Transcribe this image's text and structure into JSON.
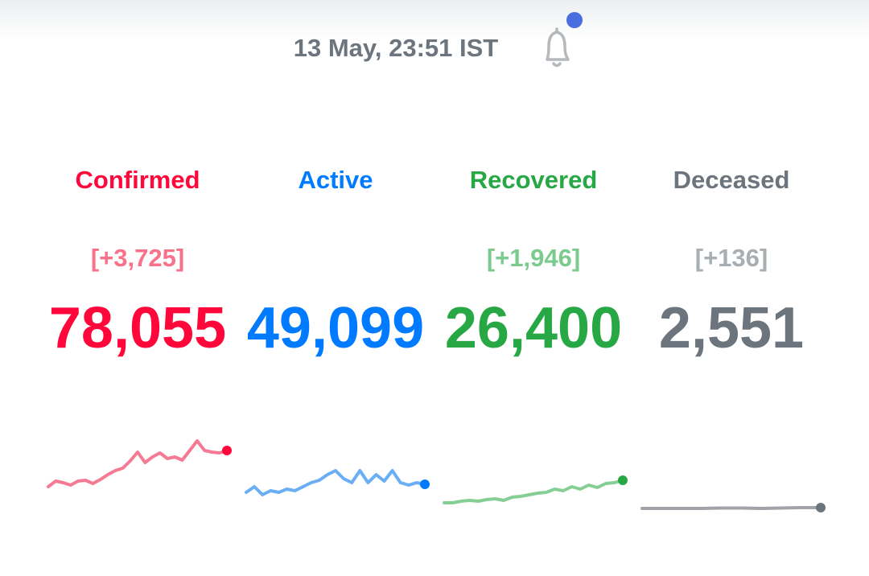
{
  "header": {
    "timestamp": "13 May, 23:51 IST"
  },
  "stats": [
    {
      "label": "Confirmed",
      "delta": "[+3,725]",
      "total": "78,055",
      "color": "#ff073a",
      "delta_color": "#f7728a",
      "line_color": "#f47b93",
      "sparkline": {
        "ylim": [
          0,
          100
        ],
        "values": [
          35,
          42,
          40,
          37,
          42,
          43,
          39,
          44,
          50,
          55,
          58,
          67,
          78,
          65,
          72,
          77,
          70,
          72,
          68,
          80,
          92,
          80,
          78,
          77,
          80
        ]
      }
    },
    {
      "label": "Active",
      "total": "49,099",
      "color": "#007bff",
      "line_color": "#6aaef5",
      "sparkline": {
        "ylim": [
          0,
          100
        ],
        "values": [
          28,
          35,
          25,
          30,
          28,
          32,
          30,
          35,
          40,
          43,
          50,
          55,
          45,
          40,
          55,
          40,
          50,
          42,
          55,
          40,
          37,
          40,
          38
        ]
      }
    },
    {
      "label": "Recovered",
      "delta": "[+1,946]",
      "total": "26,400",
      "color": "#28a745",
      "delta_color": "#7ccb8e",
      "line_color": "#85cf95",
      "sparkline": {
        "ylim": [
          0,
          100
        ],
        "values": [
          15,
          15,
          17,
          18,
          17,
          19,
          20,
          18,
          22,
          23,
          25,
          27,
          28,
          32,
          30,
          35,
          32,
          37,
          34,
          39,
          40,
          43
        ]
      }
    },
    {
      "label": "Deceased",
      "delta": "[+136]",
      "total": "2,551",
      "color": "#6c757d",
      "delta_color": "#a9aeb3",
      "line_color": "#a0a4a8",
      "sparkline": {
        "ylim": [
          0,
          100
        ],
        "values": [
          8,
          8,
          8,
          8,
          8.5,
          8.5,
          8,
          8.5,
          9,
          9
        ]
      }
    }
  ]
}
